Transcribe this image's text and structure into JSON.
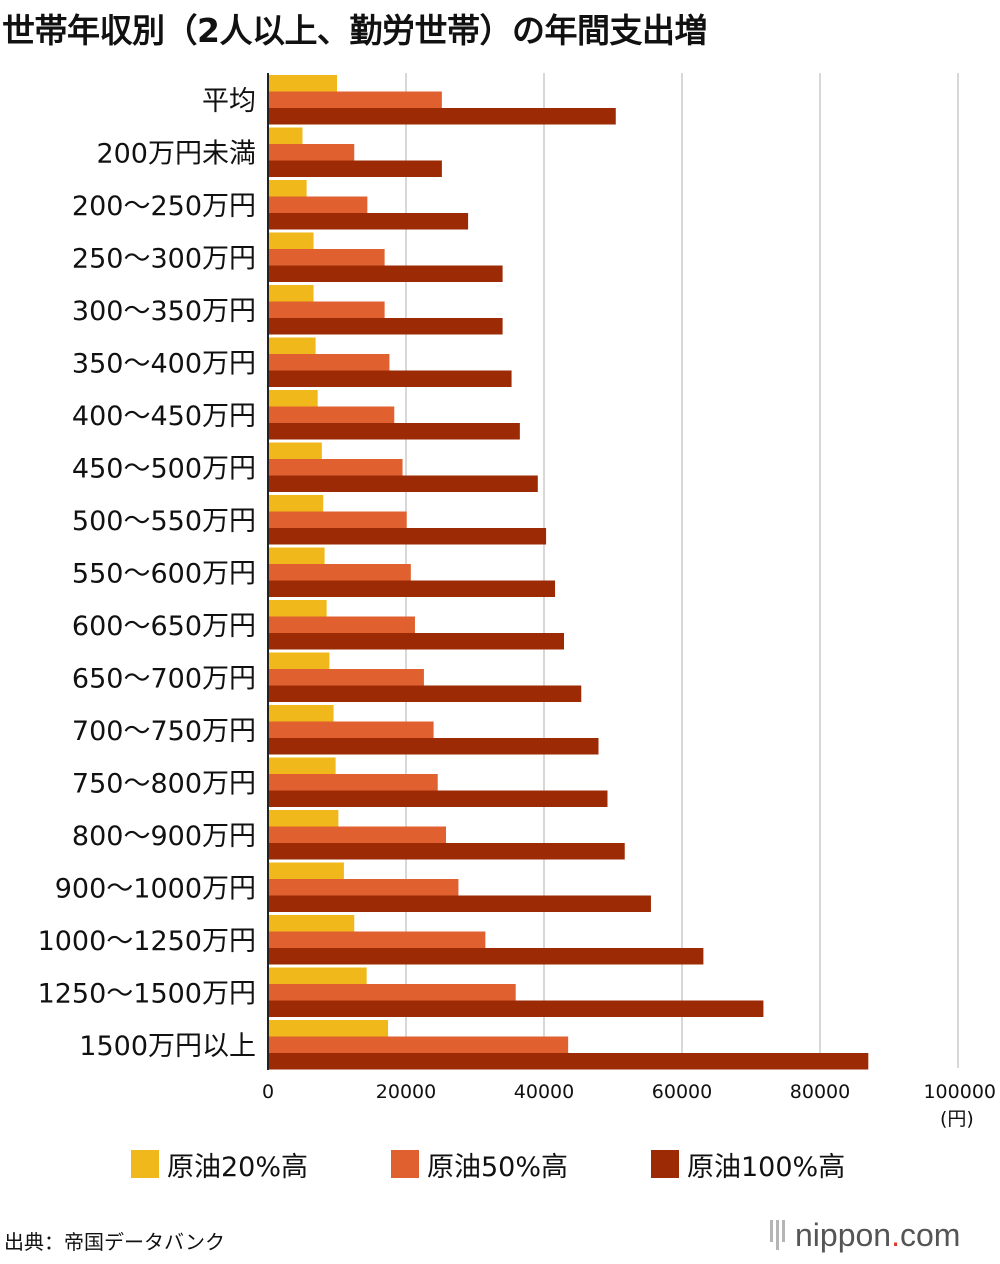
{
  "title": "世帯年収別（2人以上、勤労世帯）の年間支出増",
  "unit": "(円)",
  "source": "出典：帝国データバンク",
  "brand": {
    "name": "nippon",
    "dot": ".",
    "suffix": "com"
  },
  "colors": {
    "s20": "#f0b81a",
    "s50": "#e0612f",
    "s100": "#9b2a05",
    "grid": "#cccccc",
    "axis": "#222222"
  },
  "chart_data": {
    "type": "bar",
    "orientation": "horizontal",
    "categories": [
      "平均",
      "200万円未満",
      "200〜250万円",
      "250〜300万円",
      "300〜350万円",
      "350〜400万円",
      "400〜450万円",
      "450〜500万円",
      "500〜550万円",
      "550〜600万円",
      "600〜650万円",
      "650〜700万円",
      "700〜750万円",
      "750〜800万円",
      "800〜900万円",
      "900〜1000万円",
      "1000〜1250万円",
      "1250〜1500万円",
      "1500万円以上"
    ],
    "series": [
      {
        "name": "原油20%高",
        "values": [
          10000,
          5000,
          5600,
          6600,
          6600,
          6900,
          7200,
          7800,
          8000,
          8200,
          8500,
          8900,
          9500,
          9800,
          10200,
          11000,
          12500,
          14300,
          17400
        ]
      },
      {
        "name": "原油50%高",
        "values": [
          25200,
          12500,
          14400,
          16900,
          16900,
          17600,
          18300,
          19500,
          20100,
          20700,
          21300,
          22600,
          24000,
          24600,
          25800,
          27600,
          31500,
          35900,
          43500
        ]
      },
      {
        "name": "原油100%高",
        "values": [
          50400,
          25200,
          29000,
          34000,
          34000,
          35300,
          36500,
          39100,
          40300,
          41600,
          42900,
          45400,
          47900,
          49200,
          51700,
          55500,
          63100,
          71800,
          87000
        ]
      }
    ],
    "xlim": [
      0,
      100000
    ],
    "xticks": [
      "0",
      "20000",
      "40000",
      "60000",
      "80000",
      "100000"
    ],
    "grid": true,
    "legend": "bottom"
  }
}
